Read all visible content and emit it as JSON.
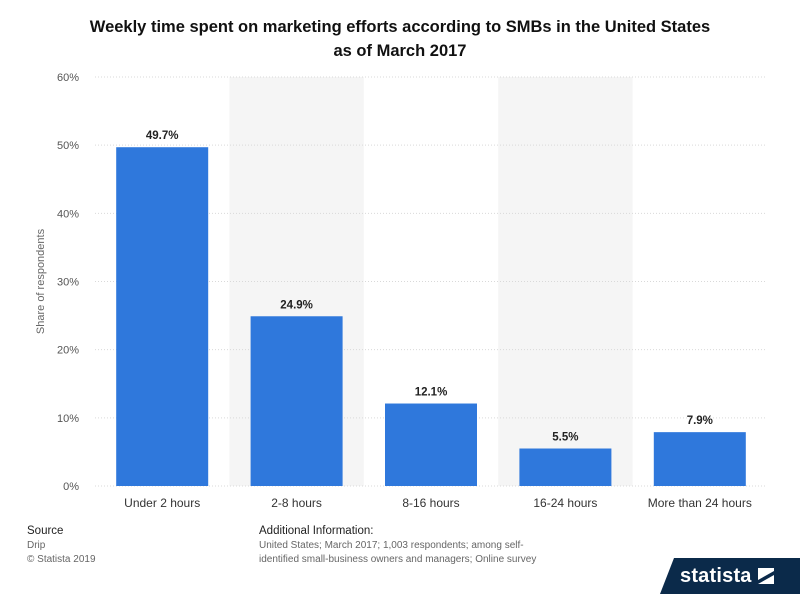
{
  "title_lines": [
    "Weekly time spent on marketing efforts according to SMBs in the United States",
    "as of March 2017"
  ],
  "chart_data": {
    "type": "bar",
    "title": "Weekly time spent on marketing efforts according to SMBs in the United States as of March 2017",
    "categories": [
      "Under 2 hours",
      "2-8 hours",
      "8-16 hours",
      "16-24 hours",
      "More than 24 hours"
    ],
    "values": [
      49.7,
      24.9,
      12.1,
      5.5,
      7.9
    ],
    "value_labels": [
      "49.7%",
      "24.9%",
      "12.1%",
      "5.5%",
      "7.9%"
    ],
    "ylabel": "Share of respondents",
    "xlabel": "",
    "ylim": [
      0,
      60
    ],
    "yticks": [
      "0%",
      "10%",
      "20%",
      "30%",
      "40%",
      "50%",
      "60%"
    ],
    "grid": true,
    "bar_color": "#2f78dc",
    "band_color": "#f5f5f5"
  },
  "footer": {
    "source_heading": "Source",
    "source_name": "Drip",
    "copyright": "© Statista 2019",
    "info_heading": "Additional Information:",
    "info_text": "United States; March 2017; 1,003 respondents; among self-identified small-business owners and managers; Online survey"
  },
  "brand": {
    "name": "statista",
    "icon": "statista-logo-icon"
  }
}
